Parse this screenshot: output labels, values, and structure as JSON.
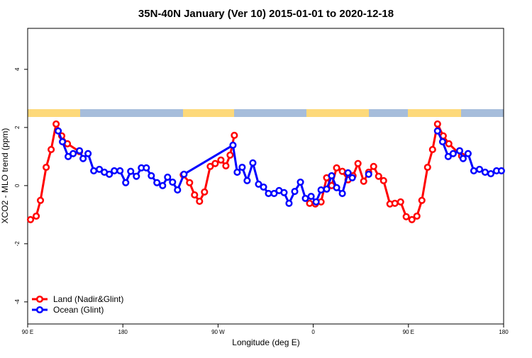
{
  "chart_data": {
    "type": "line",
    "title": "35N-40N January (Ver 10)   2015-01-01 to 2020-12-18",
    "x_label": "Longitude (deg E)",
    "y_label": "XCO2 - MLO trend (ppm)",
    "xlim": [
      90,
      540
    ],
    "xticks": [
      {
        "value": 90,
        "label": "90 E"
      },
      {
        "value": 180,
        "label": "180"
      },
      {
        "value": 270,
        "label": "90 W"
      },
      {
        "value": 360,
        "label": "0"
      },
      {
        "value": 450,
        "label": "90 E"
      },
      {
        "value": 540,
        "label": "180"
      }
    ],
    "ylim": [
      -4.76,
      5.41
    ],
    "yticks": [
      -4,
      -2,
      0,
      2,
      4
    ],
    "legend": "bottom-left",
    "series": [
      {
        "name": "Land (Nadir&Glint)",
        "color": "#ff0000",
        "x": [
          92.7,
          98.1,
          102.1,
          107.5,
          112.2,
          116.9,
          122.2,
          127.6,
          139.0,
          null,
          237.1,
          243.1,
          247.8,
          252.5,
          257.2,
          262.6,
          267.3,
          272.7,
          277.4,
          281.4,
          285.4,
          null,
          356.6,
          362.0,
          367.4,
          372.7,
          377.4,
          382.1,
          387.5,
          392.9,
          397.6,
          402.3,
          407.7,
          412.4,
          417.1,
          421.8,
          426.5,
          432.5,
          437.2,
          442.6,
          447.9,
          453.3,
          458.0,
          462.7,
          468.1,
          472.8,
          477.5,
          482.9,
          488.2,
          500.3
        ],
        "values": [
          -1.17,
          -1.05,
          -0.51,
          0.63,
          1.24,
          2.12,
          1.71,
          1.44,
          1.17,
          null,
          0.37,
          0.1,
          -0.32,
          -0.54,
          -0.22,
          0.66,
          0.76,
          0.88,
          0.68,
          1.05,
          1.73,
          null,
          -0.61,
          -0.63,
          -0.56,
          0.27,
          0,
          0.61,
          0.49,
          0.2,
          0.34,
          0.76,
          0.15,
          0.46,
          0.66,
          0.32,
          0.17,
          -0.63,
          -0.61,
          -0.56,
          -1.07,
          -1.17,
          -1.05,
          -0.51,
          0.63,
          1.24,
          2.12,
          1.71,
          1.44,
          1.02
        ]
      },
      {
        "name": "Ocean (Glint)",
        "color": "#0000ff",
        "x": [
          118.9,
          122.9,
          128.3,
          133.0,
          139.0,
          142.4,
          147.1,
          152.5,
          157.8,
          162.5,
          167.2,
          171.9,
          177.3,
          182.7,
          187.4,
          192.8,
          197.5,
          202.2,
          206.9,
          212.2,
          217.6,
          222.3,
          227.0,
          231.7,
          237.8,
          284.1,
          288.1,
          292.8,
          297.5,
          302.9,
          308.3,
          313.0,
          317.7,
          323.0,
          327.7,
          332.4,
          337.1,
          342.5,
          347.9,
          352.6,
          358.0,
          362.7,
          367.4,
          372.7,
          377.4,
          382.1,
          387.5,
          392.9,
          396.9,
          null,
          412.4,
          null,
          477.5,
          482.3,
          487.6,
          492.3,
          498.4,
          501.7,
          506.4,
          511.8,
          517.2,
          522.5,
          527.9,
          533.3,
          537.9
        ],
        "values": [
          1.88,
          1.51,
          1.0,
          1.1,
          1.2,
          0.93,
          1.1,
          0.51,
          0.56,
          0.46,
          0.39,
          0.51,
          0.51,
          0.1,
          0.49,
          0.32,
          0.61,
          0.61,
          0.34,
          0.1,
          0.0,
          0.29,
          0.12,
          -0.15,
          0.39,
          1.39,
          0.46,
          0.63,
          0.17,
          0.78,
          0.05,
          -0.05,
          -0.27,
          -0.27,
          -0.17,
          -0.24,
          -0.61,
          -0.2,
          0.12,
          -0.44,
          -0.37,
          -0.56,
          -0.15,
          -0.12,
          0.34,
          -0.07,
          -0.27,
          0.44,
          0.27,
          null,
          0.39,
          null,
          1.88,
          1.51,
          1.0,
          1.1,
          1.2,
          0.93,
          1.1,
          0.51,
          0.56,
          0.46,
          0.41,
          0.51,
          0.51
        ]
      }
    ]
  }
}
